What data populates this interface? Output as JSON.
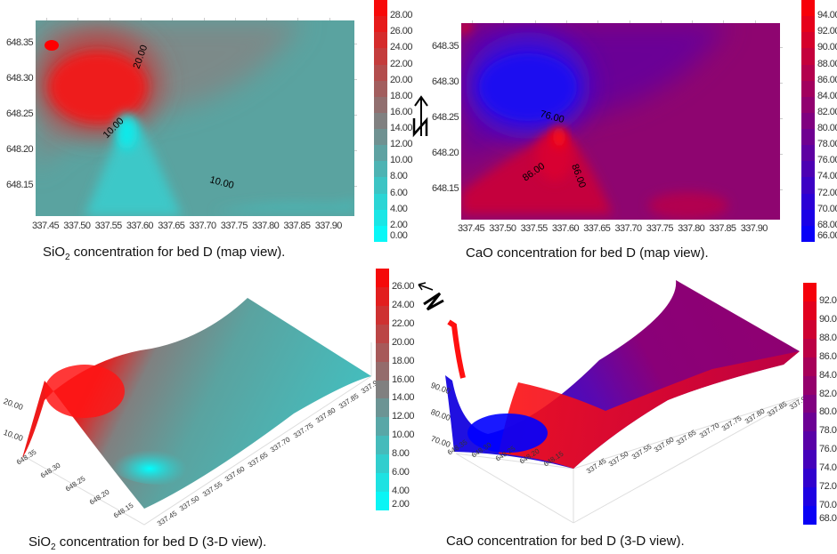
{
  "chart_data": [
    {
      "type": "heatmap",
      "view": "map",
      "caption": {
        "pre": "SiO",
        "sub": "2",
        "post": " concentration for bed D (map view)."
      },
      "x_ticks": [
        "337.45",
        "337.50",
        "337.55",
        "337.60",
        "337.65",
        "337.70",
        "337.75",
        "337.80",
        "337.85",
        "337.90"
      ],
      "y_ticks": [
        "648.35",
        "648.30",
        "648.25",
        "648.20",
        "648.15"
      ],
      "colorbar_ticks": [
        "28.00",
        "26.00",
        "24.00",
        "22.00",
        "20.00",
        "18.00",
        "16.00",
        "14.00",
        "12.00",
        "10.00",
        "8.00",
        "6.00",
        "4.00",
        "2.00",
        "0.00"
      ],
      "colorbar_range": [
        0,
        30
      ],
      "contour_labels": [
        "20.00",
        "10.00",
        "10.00"
      ],
      "colormap": [
        "#00ffff",
        "#808080",
        "#ff0000"
      ]
    },
    {
      "type": "heatmap",
      "view": "map",
      "caption": {
        "pre": "CaO concentration for bed D (map view).",
        "sub": "",
        "post": ""
      },
      "x_ticks": [
        "337.45",
        "337.50",
        "337.55",
        "337.60",
        "337.65",
        "337.70",
        "337.75",
        "337.80",
        "337.85",
        "337.90"
      ],
      "y_ticks": [
        "648.35",
        "648.30",
        "648.25",
        "648.20",
        "648.15"
      ],
      "colorbar_ticks": [
        "94.00",
        "92.00",
        "90.00",
        "88.00",
        "86.00",
        "84.00",
        "82.00",
        "80.00",
        "78.00",
        "76.00",
        "74.00",
        "72.00",
        "70.00",
        "68.00",
        "66.00"
      ],
      "colorbar_range": [
        66,
        96
      ],
      "contour_labels": [
        "76.00",
        "86.00",
        "86.00"
      ],
      "colormap": [
        "#0000ff",
        "#800080",
        "#ff0000"
      ]
    },
    {
      "type": "heatmap",
      "view": "3-D",
      "caption": {
        "pre": "SiO",
        "sub": "2",
        "post": " concentration for bed D (3-D view)."
      },
      "x_ticks": [
        "337.45",
        "337.50",
        "337.55",
        "337.60",
        "337.65",
        "337.70",
        "337.75",
        "337.80",
        "337.85",
        "337.90"
      ],
      "y_ticks": [
        "648.35",
        "648.30",
        "648.25",
        "648.20",
        "648.15"
      ],
      "z_ticks": [
        "20.00",
        "10.00"
      ],
      "colorbar_ticks": [
        "26.00",
        "24.00",
        "22.00",
        "20.00",
        "18.00",
        "16.00",
        "14.00",
        "12.00",
        "10.00",
        "8.00",
        "6.00",
        "4.00",
        "2.00"
      ],
      "colorbar_range": [
        2,
        28
      ],
      "colormap": [
        "#00ffff",
        "#808080",
        "#ff0000"
      ]
    },
    {
      "type": "heatmap",
      "view": "3-D",
      "caption": {
        "pre": "CaO concentration for bed D (3-D view).",
        "sub": "",
        "post": ""
      },
      "x_ticks": [
        "337.45",
        "337.50",
        "337.55",
        "337.60",
        "337.65",
        "337.70",
        "337.75",
        "337.80",
        "337.85",
        "337.90"
      ],
      "y_ticks": [
        "648.35",
        "648.30",
        "648.25",
        "648.20",
        "648.15"
      ],
      "z_ticks": [
        "90.00",
        "80.00",
        "70.00"
      ],
      "colorbar_ticks": [
        "92.00",
        "90.00",
        "88.00",
        "86.00",
        "84.00",
        "82.00",
        "80.00",
        "78.00",
        "76.00",
        "74.00",
        "72.00",
        "70.00",
        "68.00"
      ],
      "colorbar_range": [
        68,
        94
      ],
      "colormap": [
        "#0000ff",
        "#800080",
        "#ff0000"
      ]
    }
  ],
  "north_arrows": {
    "label": "N",
    "icon": "north-arrow-icon"
  }
}
